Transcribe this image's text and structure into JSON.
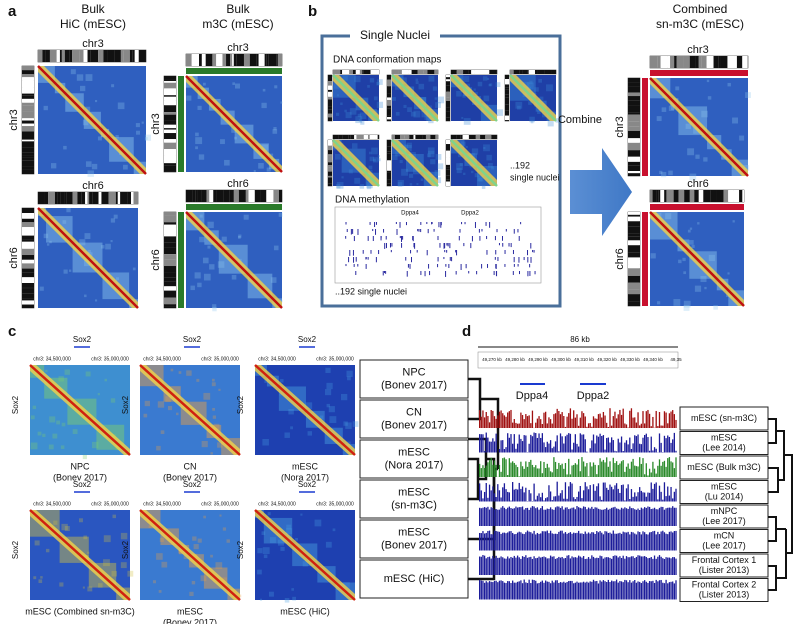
{
  "panel_a": {
    "label": "a",
    "columns": [
      {
        "title": [
          "Bulk",
          "HiC (mESC)"
        ],
        "chromosomes": [
          "chr3",
          "chr6"
        ]
      },
      {
        "title": [
          "Bulk",
          "m3C (mESC)"
        ],
        "chromosomes": [
          "chr3",
          "chr6"
        ]
      }
    ]
  },
  "panel_b": {
    "label": "b",
    "box_title": "Single Nuclei",
    "conformation_title": "DNA conformation maps",
    "conformation_count": [
      "..192",
      "single nuclei"
    ],
    "methylation_title": "DNA methylation",
    "genes": [
      "Dppa4",
      "Dppa2"
    ],
    "methylation_count": "..192 single nuclei",
    "arrow_label": "Combine",
    "combined_title": [
      "Combined",
      "sn-m3C (mESC)"
    ],
    "chromosomes": [
      "chr3",
      "chr6"
    ]
  },
  "panel_c": {
    "label": "c",
    "gene": "Sox2",
    "axis_labels": [
      "chr3: 34,500,000",
      "chr3: 35,000,000"
    ],
    "maps": [
      {
        "caption": [
          "NPC",
          "(Bonev 2017)"
        ]
      },
      {
        "caption": [
          "CN",
          "(Bonev 2017)"
        ]
      },
      {
        "caption": [
          "mESC",
          "(Nora 2017)"
        ]
      },
      {
        "caption": [
          "mESC (Combined sn-m3C)"
        ]
      },
      {
        "caption": [
          "mESC",
          "(Bonev 2017)"
        ]
      },
      {
        "caption": [
          "mESC (HiC)"
        ]
      }
    ],
    "tree_labels": [
      [
        "NPC",
        "(Bonev 2017)"
      ],
      [
        "CN",
        "(Bonev 2017)"
      ],
      [
        "mESC",
        "(Nora 2017)"
      ],
      [
        "mESC",
        "(sn-m3C)"
      ],
      [
        "mESC",
        "(Bonev 2017)"
      ],
      [
        "mESC (HiC)"
      ]
    ]
  },
  "panel_d": {
    "label": "d",
    "scale": "86 kb",
    "coordinates": [
      "49,270 kb",
      "49,280 kb",
      "49,290 kb",
      "49,300 kb",
      "49,310 kb",
      "49,320 kb",
      "49,330 kb",
      "49,340 kb",
      "49,35"
    ],
    "genes": [
      "Dppa4",
      "Dppa2"
    ],
    "tracks": [
      [
        "mESC (sn-m3C)"
      ],
      [
        "mESC",
        "(Lee 2014)"
      ],
      [
        "mESC (Bulk m3C)"
      ],
      [
        "mESC",
        "(Lu 2014)"
      ],
      [
        "mNPC",
        "(Lee 2017)"
      ],
      [
        "mCN",
        "(Lee 2017)"
      ],
      [
        "Frontal Cortex 1",
        "(Lister 2013)"
      ],
      [
        "Frontal Cortex 2",
        "(Lister 2013)"
      ]
    ]
  }
}
